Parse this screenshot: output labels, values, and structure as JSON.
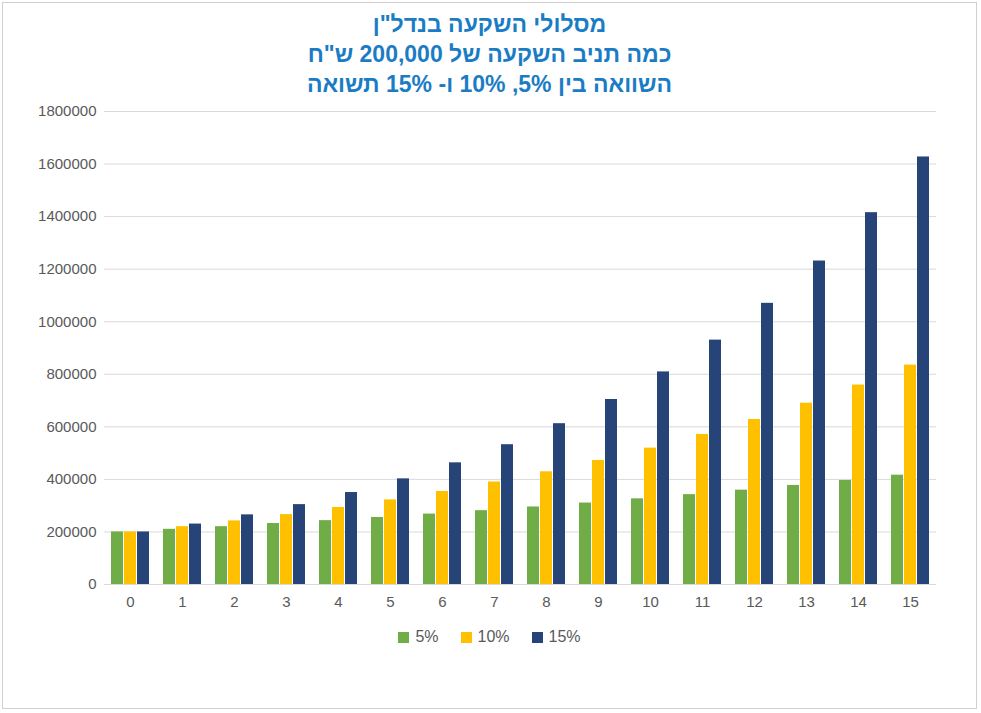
{
  "chart_data": {
    "type": "bar",
    "title": "מסלולי השקעה בנדל\"ן\nכמה תניב השקעה של 200,000 ש\"ח\nהשוואה בין 5%, 10% ו- 15% תשואה",
    "categories": [
      0,
      1,
      2,
      3,
      4,
      5,
      6,
      7,
      8,
      9,
      10,
      11,
      12,
      13,
      14,
      15
    ],
    "series": [
      {
        "name": "5%",
        "color": "#70ad47",
        "values": [
          200000,
          210000,
          220000,
          232000,
          243000,
          255000,
          268000,
          281000,
          295000,
          310000,
          326000,
          342000,
          359000,
          377000,
          396000,
          416000
        ]
      },
      {
        "name": "10%",
        "color": "#ffc000",
        "values": [
          200000,
          220000,
          242000,
          266000,
          293000,
          322000,
          354000,
          390000,
          429000,
          472000,
          519000,
          571000,
          628000,
          690000,
          759000,
          835000
        ]
      },
      {
        "name": "15%",
        "color": "#264478",
        "values": [
          200000,
          230000,
          265000,
          304000,
          350000,
          402000,
          463000,
          532000,
          612000,
          704000,
          809000,
          930000,
          1070000,
          1231000,
          1415000,
          1627000
        ]
      }
    ],
    "ylim": [
      0,
      1800000
    ],
    "yticks": [
      0,
      200000,
      400000,
      600000,
      800000,
      1000000,
      1200000,
      1400000,
      1600000,
      1800000
    ],
    "grid": true,
    "legend": "bottom"
  }
}
